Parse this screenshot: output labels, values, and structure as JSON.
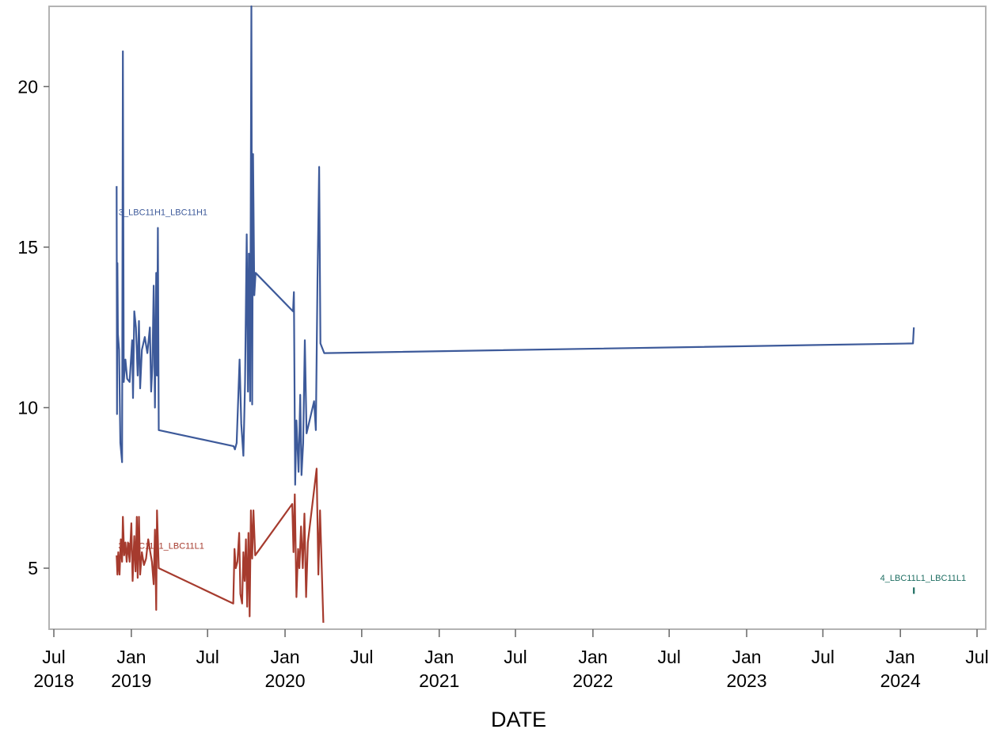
{
  "chart_data": {
    "type": "line",
    "title": "",
    "xlabel": "DATE",
    "ylabel": "",
    "xlim": [
      "2018-07-01",
      "2024-07-01"
    ],
    "ylim": [
      3.1,
      22.5
    ],
    "grid": false,
    "y_ticks": [
      5,
      10,
      15,
      20
    ],
    "x_ticks": [
      {
        "date": "2018-07-01",
        "line1": "Jul",
        "line2": "2018"
      },
      {
        "date": "2019-01-01",
        "line1": "Jan",
        "line2": "2019"
      },
      {
        "date": "2019-07-01",
        "line1": "Jul",
        "line2": ""
      },
      {
        "date": "2020-01-01",
        "line1": "Jan",
        "line2": "2020"
      },
      {
        "date": "2020-07-01",
        "line1": "Jul",
        "line2": ""
      },
      {
        "date": "2021-01-01",
        "line1": "Jan",
        "line2": "2021"
      },
      {
        "date": "2021-07-01",
        "line1": "Jul",
        "line2": ""
      },
      {
        "date": "2022-01-01",
        "line1": "Jan",
        "line2": "2022"
      },
      {
        "date": "2022-07-01",
        "line1": "Jul",
        "line2": ""
      },
      {
        "date": "2023-01-01",
        "line1": "Jan",
        "line2": "2023"
      },
      {
        "date": "2023-07-01",
        "line1": "Jul",
        "line2": ""
      },
      {
        "date": "2024-01-01",
        "line1": "Jan",
        "line2": "2024"
      },
      {
        "date": "2024-07-01",
        "line1": "Jul",
        "line2": ""
      }
    ],
    "series": [
      {
        "name": "3_LBC11H1_LBC11H1",
        "color": "#3d5a9a",
        "label_at": {
          "date": "2018-12-02",
          "y": 16.0
        },
        "points": [
          [
            "2018-11-27",
            16.9
          ],
          [
            "2018-11-28",
            9.8
          ],
          [
            "2018-11-29",
            14.5
          ],
          [
            "2018-11-30",
            12.3
          ],
          [
            "2018-12-03",
            11.8
          ],
          [
            "2018-12-06",
            8.9
          ],
          [
            "2018-12-10",
            8.3
          ],
          [
            "2018-12-12",
            21.1
          ],
          [
            "2018-12-14",
            10.8
          ],
          [
            "2018-12-18",
            11.5
          ],
          [
            "2018-12-22",
            10.9
          ],
          [
            "2018-12-28",
            10.8
          ],
          [
            "2019-01-03",
            12.1
          ],
          [
            "2019-01-05",
            10.3
          ],
          [
            "2019-01-08",
            13.0
          ],
          [
            "2019-01-12",
            12.5
          ],
          [
            "2019-01-16",
            11.0
          ],
          [
            "2019-01-19",
            12.7
          ],
          [
            "2019-01-22",
            10.6
          ],
          [
            "2019-01-26",
            11.8
          ],
          [
            "2019-02-02",
            12.2
          ],
          [
            "2019-02-08",
            11.7
          ],
          [
            "2019-02-14",
            12.5
          ],
          [
            "2019-02-17",
            10.5
          ],
          [
            "2019-02-20",
            11.3
          ],
          [
            "2019-02-23",
            13.8
          ],
          [
            "2019-02-26",
            10.0
          ],
          [
            "2019-03-01",
            14.2
          ],
          [
            "2019-03-03",
            11.0
          ],
          [
            "2019-03-05",
            15.6
          ],
          [
            "2019-03-07",
            9.3
          ],
          [
            "2019-09-01",
            8.8
          ],
          [
            "2019-09-04",
            8.7
          ],
          [
            "2019-09-08",
            8.9
          ],
          [
            "2019-09-15",
            11.5
          ],
          [
            "2019-09-19",
            9.5
          ],
          [
            "2019-09-24",
            8.5
          ],
          [
            "2019-09-28",
            10.8
          ],
          [
            "2019-10-02",
            15.4
          ],
          [
            "2019-10-05",
            10.5
          ],
          [
            "2019-10-07",
            14.8
          ],
          [
            "2019-10-10",
            10.2
          ],
          [
            "2019-10-13",
            22.5
          ],
          [
            "2019-10-15",
            10.1
          ],
          [
            "2019-10-17",
            17.9
          ],
          [
            "2019-10-20",
            13.5
          ],
          [
            "2019-10-23",
            14.2
          ],
          [
            "2020-01-20",
            13.0
          ],
          [
            "2020-01-22",
            13.6
          ],
          [
            "2020-01-25",
            7.6
          ],
          [
            "2020-01-28",
            9.6
          ],
          [
            "2020-02-02",
            8.0
          ],
          [
            "2020-02-06",
            10.4
          ],
          [
            "2020-02-09",
            7.9
          ],
          [
            "2020-02-13",
            8.9
          ],
          [
            "2020-02-17",
            12.1
          ],
          [
            "2020-02-21",
            9.2
          ],
          [
            "2020-03-10",
            10.2
          ],
          [
            "2020-03-14",
            9.3
          ],
          [
            "2020-03-18",
            14.0
          ],
          [
            "2020-03-22",
            17.5
          ],
          [
            "2020-03-25",
            12.0
          ],
          [
            "2020-04-03",
            11.7
          ],
          [
            "2024-01-31",
            12.0
          ],
          [
            "2024-02-02",
            12.5
          ]
        ]
      },
      {
        "name": "3_LBC11L1_LBC11L1",
        "color": "#a63b2e",
        "label_at": {
          "date": "2018-12-01",
          "y": 5.6
        },
        "points": [
          [
            "2018-11-27",
            5.4
          ],
          [
            "2018-11-29",
            4.8
          ],
          [
            "2018-12-01",
            5.5
          ],
          [
            "2018-12-04",
            4.8
          ],
          [
            "2018-12-07",
            5.9
          ],
          [
            "2018-12-10",
            5.2
          ],
          [
            "2018-12-12",
            6.6
          ],
          [
            "2018-12-15",
            5.4
          ],
          [
            "2018-12-18",
            5.8
          ],
          [
            "2018-12-21",
            5.2
          ],
          [
            "2018-12-24",
            5.8
          ],
          [
            "2018-12-28",
            5.2
          ],
          [
            "2019-01-01",
            6.4
          ],
          [
            "2019-01-04",
            4.6
          ],
          [
            "2019-01-08",
            6.0
          ],
          [
            "2019-01-11",
            4.9
          ],
          [
            "2019-01-14",
            6.6
          ],
          [
            "2019-01-16",
            4.7
          ],
          [
            "2019-01-19",
            6.6
          ],
          [
            "2019-01-22",
            4.8
          ],
          [
            "2019-01-26",
            5.5
          ],
          [
            "2019-01-31",
            5.1
          ],
          [
            "2019-02-05",
            5.3
          ],
          [
            "2019-02-10",
            5.9
          ],
          [
            "2019-02-15",
            5.5
          ],
          [
            "2019-02-19",
            5.2
          ],
          [
            "2019-02-23",
            4.5
          ],
          [
            "2019-02-26",
            6.2
          ],
          [
            "2019-03-01",
            3.7
          ],
          [
            "2019-03-03",
            6.8
          ],
          [
            "2019-03-07",
            5.0
          ],
          [
            "2019-08-31",
            3.9
          ],
          [
            "2019-09-03",
            5.6
          ],
          [
            "2019-09-06",
            5.0
          ],
          [
            "2019-09-10",
            5.2
          ],
          [
            "2019-09-14",
            6.1
          ],
          [
            "2019-09-17",
            4.2
          ],
          [
            "2019-09-21",
            3.9
          ],
          [
            "2019-09-24",
            5.5
          ],
          [
            "2019-09-27",
            4.6
          ],
          [
            "2019-09-30",
            5.9
          ],
          [
            "2019-10-03",
            3.8
          ],
          [
            "2019-10-06",
            6.1
          ],
          [
            "2019-10-09",
            3.5
          ],
          [
            "2019-10-12",
            6.8
          ],
          [
            "2019-10-15",
            5.3
          ],
          [
            "2019-10-18",
            6.8
          ],
          [
            "2019-10-22",
            5.4
          ],
          [
            "2020-01-18",
            7.0
          ],
          [
            "2020-01-21",
            5.5
          ],
          [
            "2020-01-24",
            7.3
          ],
          [
            "2020-01-28",
            4.1
          ],
          [
            "2020-02-01",
            5.6
          ],
          [
            "2020-02-04",
            5.0
          ],
          [
            "2020-02-08",
            6.3
          ],
          [
            "2020-02-12",
            5.0
          ],
          [
            "2020-02-16",
            6.7
          ],
          [
            "2020-02-20",
            4.1
          ],
          [
            "2020-02-24",
            5.8
          ],
          [
            "2020-03-16",
            8.1
          ],
          [
            "2020-03-20",
            4.8
          ],
          [
            "2020-03-24",
            6.8
          ],
          [
            "2020-04-01",
            3.3
          ]
        ]
      },
      {
        "name": "4_LBC11L1_LBC11L1",
        "color": "#1e6e62",
        "label_at": {
          "date": "2023-11-14",
          "y": 4.6
        },
        "points": [
          [
            "2024-02-02",
            4.2
          ],
          [
            "2024-02-02",
            4.4
          ]
        ]
      }
    ]
  },
  "axes": {
    "frame_color": "#b3b3b3",
    "axis_color": "#666666"
  }
}
